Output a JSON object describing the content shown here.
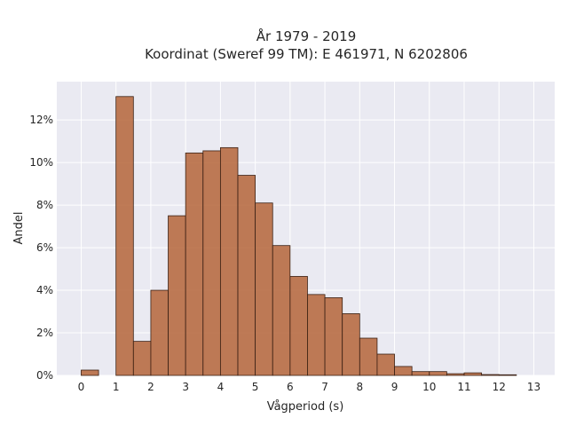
{
  "chart_data": {
    "type": "bar",
    "title": "År 1979 - 2019",
    "subtitle": "Koordinat (Sweref 99 TM): E 461971, N 6202806",
    "xlabel": "Vågperiod (s)",
    "ylabel": "Andel",
    "bin_width": 0.5,
    "bin_starts": [
      0,
      0.5,
      1,
      1.5,
      2,
      2.5,
      3,
      3.5,
      4,
      4.5,
      5,
      5.5,
      6,
      6.5,
      7,
      7.5,
      8,
      8.5,
      9,
      9.5,
      10,
      10.5,
      11,
      11.5,
      12,
      12.5
    ],
    "values": [
      0.25,
      0,
      13.1,
      1.6,
      4.0,
      7.5,
      10.45,
      10.55,
      10.7,
      9.4,
      8.1,
      6.1,
      4.65,
      3.8,
      3.65,
      2.9,
      1.75,
      1.0,
      0.42,
      0.18,
      0.18,
      0.08,
      0.12,
      0.04,
      0.03,
      0
    ],
    "xlim": [
      -0.7,
      13.6
    ],
    "ylim": [
      0,
      13.8
    ],
    "xticks": [
      0,
      1,
      2,
      3,
      4,
      5,
      6,
      7,
      8,
      9,
      10,
      11,
      12,
      13
    ],
    "yticks": [
      0,
      2,
      4,
      6,
      8,
      10,
      12
    ],
    "ytick_labels": [
      "0%",
      "2%",
      "4%",
      "6%",
      "8%",
      "10%",
      "12%"
    ],
    "grid": true,
    "bar_color": "#b5653a",
    "edge_color": "#3a2014",
    "background_color": "#eaeaf2"
  }
}
